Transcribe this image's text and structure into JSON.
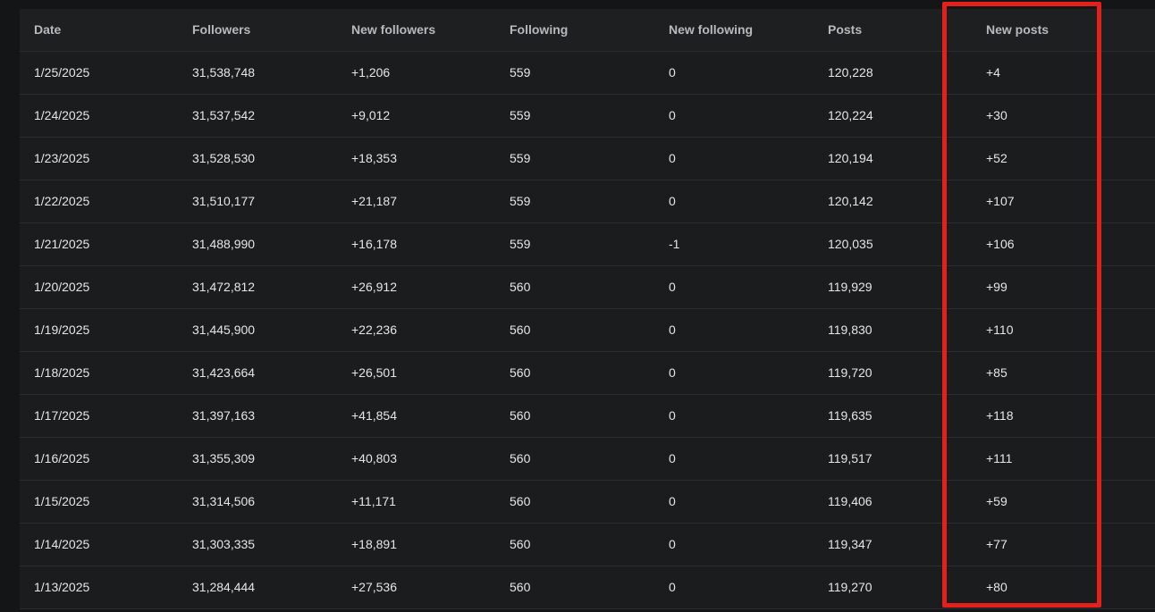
{
  "table": {
    "columns": [
      "Date",
      "Followers",
      "New followers",
      "Following",
      "New following",
      "Posts",
      "New posts"
    ],
    "rows": [
      [
        "1/25/2025",
        "31,538,748",
        "+1,206",
        "559",
        "0",
        "120,228",
        "+4"
      ],
      [
        "1/24/2025",
        "31,537,542",
        "+9,012",
        "559",
        "0",
        "120,224",
        "+30"
      ],
      [
        "1/23/2025",
        "31,528,530",
        "+18,353",
        "559",
        "0",
        "120,194",
        "+52"
      ],
      [
        "1/22/2025",
        "31,510,177",
        "+21,187",
        "559",
        "0",
        "120,142",
        "+107"
      ],
      [
        "1/21/2025",
        "31,488,990",
        "+16,178",
        "559",
        "-1",
        "120,035",
        "+106"
      ],
      [
        "1/20/2025",
        "31,472,812",
        "+26,912",
        "560",
        "0",
        "119,929",
        "+99"
      ],
      [
        "1/19/2025",
        "31,445,900",
        "+22,236",
        "560",
        "0",
        "119,830",
        "+110"
      ],
      [
        "1/18/2025",
        "31,423,664",
        "+26,501",
        "560",
        "0",
        "119,720",
        "+85"
      ],
      [
        "1/17/2025",
        "31,397,163",
        "+41,854",
        "560",
        "0",
        "119,635",
        "+118"
      ],
      [
        "1/16/2025",
        "31,355,309",
        "+40,803",
        "560",
        "0",
        "119,517",
        "+111"
      ],
      [
        "1/15/2025",
        "31,314,506",
        "+11,171",
        "560",
        "0",
        "119,406",
        "+59"
      ],
      [
        "1/14/2025",
        "31,303,335",
        "+18,891",
        "560",
        "0",
        "119,347",
        "+77"
      ],
      [
        "1/13/2025",
        "31,284,444",
        "+27,536",
        "560",
        "0",
        "119,270",
        "+80"
      ]
    ]
  },
  "highlight": {
    "column": "New posts",
    "color": "#e3201b"
  }
}
